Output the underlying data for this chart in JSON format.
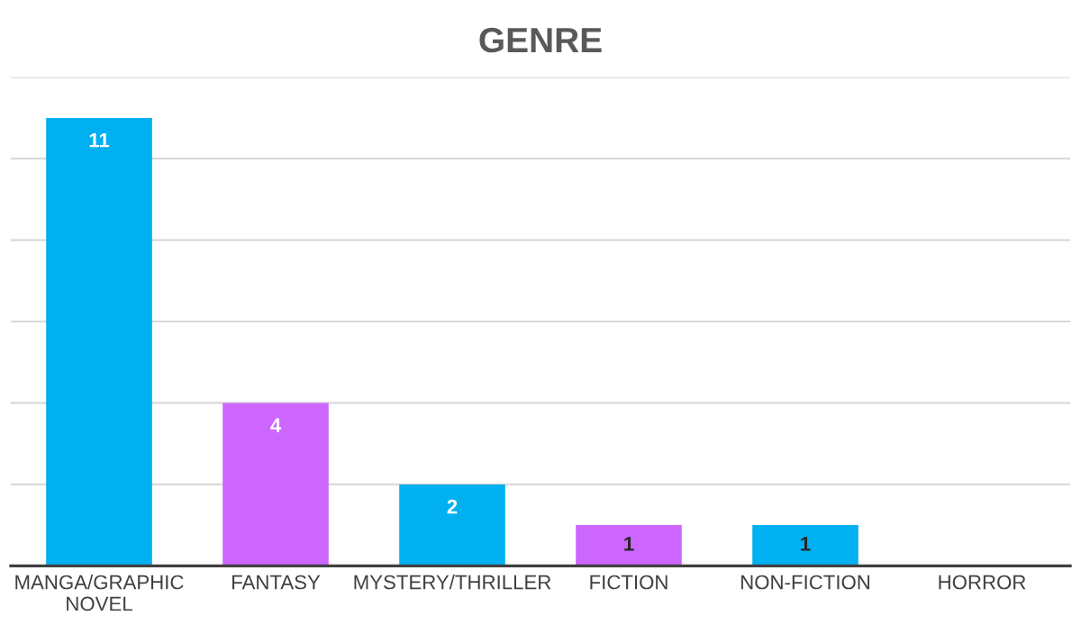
{
  "chart_data": {
    "type": "bar",
    "title": "GENRE",
    "categories": [
      "MANGA/GRAPHIC NOVEL",
      "FANTASY",
      "MYSTERY/THRILLER",
      "FICTION",
      "NON-FICTION",
      "HORROR"
    ],
    "values": [
      11,
      4,
      2,
      1,
      1,
      0
    ],
    "colors": [
      "#00b0f0",
      "#cc66ff",
      "#00b0f0",
      "#cc66ff",
      "#00b0f0",
      "#cc66ff"
    ],
    "value_labels": [
      "11",
      "4",
      "2",
      "1",
      "1",
      null
    ],
    "ylim": [
      0,
      12
    ],
    "yticks": [
      {
        "value": 0,
        "label": null
      },
      {
        "value": 2,
        "label": null
      },
      {
        "value": 4,
        "label": null
      },
      {
        "value": 6,
        "label": null
      },
      {
        "value": 8,
        "label": null
      },
      {
        "value": 10,
        "label": null
      },
      {
        "value": 12,
        "label": null
      }
    ],
    "tick_labels": "x",
    "grid": "y",
    "legend": false
  }
}
